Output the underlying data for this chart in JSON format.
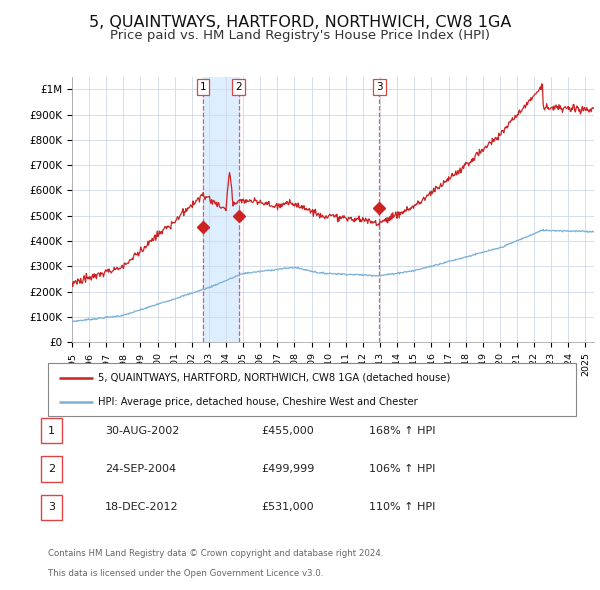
{
  "title": "5, QUAINTWAYS, HARTFORD, NORTHWICH, CW8 1GA",
  "subtitle": "Price paid vs. HM Land Registry's House Price Index (HPI)",
  "title_fontsize": 11.5,
  "subtitle_fontsize": 9.5,
  "background_color": "#ffffff",
  "grid_color": "#d0d8e8",
  "hpi_color": "#7ab0d8",
  "price_color": "#cc2222",
  "sale_marker_color": "#cc2222",
  "vline_color": "#dd4444",
  "shade_color": "#ddeeff",
  "ylim": [
    0,
    1050000
  ],
  "yticks": [
    0,
    100000,
    200000,
    300000,
    400000,
    500000,
    600000,
    700000,
    800000,
    900000,
    1000000
  ],
  "ytick_labels": [
    "£0",
    "£100K",
    "£200K",
    "£300K",
    "£400K",
    "£500K",
    "£600K",
    "£700K",
    "£800K",
    "£900K",
    "£1M"
  ],
  "sales": [
    {
      "label": 1,
      "year": 2002.663,
      "price": 455000,
      "date": "30-AUG-2002",
      "pct": "168%",
      "display_price": "£455,000"
    },
    {
      "label": 2,
      "year": 2004.729,
      "price": 499999,
      "date": "24-SEP-2004",
      "pct": "106%",
      "display_price": "£499,999"
    },
    {
      "label": 3,
      "year": 2012.963,
      "price": 531000,
      "date": "18-DEC-2012",
      "pct": "110%",
      "display_price": "£531,000"
    }
  ],
  "legend_line1": "5, QUAINTWAYS, HARTFORD, NORTHWICH, CW8 1GA (detached house)",
  "legend_line2": "HPI: Average price, detached house, Cheshire West and Chester",
  "footnote_line1": "Contains HM Land Registry data © Crown copyright and database right 2024.",
  "footnote_line2": "This data is licensed under the Open Government Licence v3.0.",
  "xmin": 1995.0,
  "xmax": 2025.5
}
